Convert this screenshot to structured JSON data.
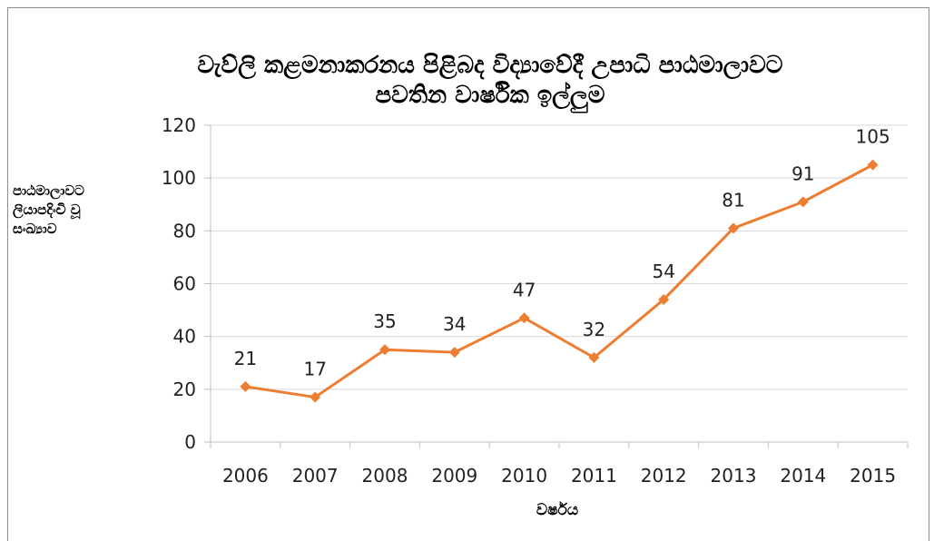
{
  "chart_data": {
    "type": "line",
    "title_lines": [
      "වැව්ලි කළමනාකරනය පිළිබද විද්‍යාවේදී උපාධි පාඨමාලාවට",
      "පවතින වාර්ෂික  ඉල්ලුම"
    ],
    "ylabel_lines": [
      "පාඨමාලාවට",
      "ලියාපදිංචි වූ",
      "සංඛ්‍යාව"
    ],
    "xlabel": "වර්ෂය",
    "categories": [
      "2006",
      "2007",
      "2008",
      "2009",
      "2010",
      "2011",
      "2012",
      "2013",
      "2014",
      "2015"
    ],
    "series": [
      {
        "values": [
          21,
          17,
          35,
          34,
          47,
          32,
          54,
          81,
          91,
          105
        ]
      }
    ],
    "ylim": [
      0,
      120
    ],
    "yticks": [
      0,
      20,
      40,
      60,
      80,
      100,
      120
    ],
    "grid": true,
    "legend": "none",
    "data_labels": true,
    "marker": "diamond",
    "colors": {
      "line": "#ED7D31",
      "grid": "#D9D9D9",
      "axis": "#BFBFBF",
      "frame": "#8C8C8C"
    }
  }
}
